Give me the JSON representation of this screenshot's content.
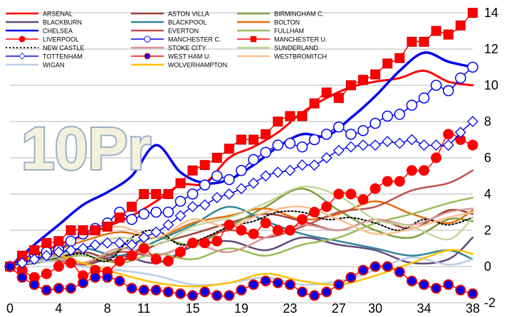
{
  "overlay_text": "10Pr",
  "chart_data": {
    "type": "line",
    "title": "",
    "xlabel": "",
    "ylabel": "",
    "xlim": [
      0,
      38
    ],
    "ylim": [
      -2,
      14
    ],
    "x_ticks": [
      0,
      4,
      8,
      11,
      15,
      19,
      23,
      27,
      30,
      34,
      38
    ],
    "y_ticks": [
      -2,
      0,
      2,
      4,
      6,
      8,
      10,
      12,
      14
    ],
    "grid": "horizontal",
    "legend_position": "top",
    "series": [
      {
        "name": "ARSENAL",
        "color": "#ff0000",
        "width": 3,
        "marker": "none",
        "x": [
          0,
          2,
          4,
          6,
          8,
          10,
          12,
          14,
          16,
          18,
          20,
          22,
          24,
          26,
          28,
          30,
          32,
          34,
          36,
          38
        ],
        "y": [
          0,
          0.6,
          1.2,
          1.7,
          2.2,
          2.8,
          3.6,
          4.5,
          4.6,
          6.0,
          6.6,
          7.4,
          8.5,
          9.3,
          9.9,
          10.2,
          10.4,
          10.8,
          10.2,
          10.0
        ]
      },
      {
        "name": "ASTON VILLA",
        "color": "#a0423a",
        "width": 2.5,
        "marker": "none",
        "x": [
          0,
          3,
          6,
          9,
          12,
          15,
          18,
          21,
          24,
          27,
          30,
          33,
          36,
          38
        ],
        "y": [
          0,
          0.3,
          0.8,
          0.3,
          1.2,
          1.8,
          2.4,
          2.9,
          2.5,
          2.0,
          2.6,
          2.1,
          3.1,
          2.9
        ]
      },
      {
        "name": "BIRMINGHAM C.",
        "color": "#7f9f3c",
        "width": 2.5,
        "marker": "none",
        "x": [
          0,
          3,
          6,
          9,
          12,
          15,
          18,
          21,
          24,
          27,
          30,
          33,
          36,
          38
        ],
        "y": [
          0,
          0.4,
          0.2,
          0.9,
          1.6,
          1.2,
          2.2,
          3.3,
          4.3,
          3.1,
          2.0,
          1.6,
          2.6,
          2.5
        ]
      },
      {
        "name": "BLACKBURN",
        "color": "#60497a",
        "width": 2.5,
        "marker": "none",
        "x": [
          0,
          3,
          6,
          9,
          12,
          15,
          18,
          21,
          24,
          27,
          30,
          33,
          36,
          38
        ],
        "y": [
          0,
          0.7,
          0.1,
          0.6,
          0.2,
          1.1,
          1.4,
          0.9,
          1.6,
          1.2,
          0.9,
          0.2,
          0.4,
          1.6
        ]
      },
      {
        "name": "BLACKPOOL",
        "color": "#31849b",
        "width": 2.5,
        "marker": "none",
        "x": [
          0,
          3,
          6,
          9,
          12,
          15,
          18,
          21,
          24,
          27,
          30,
          33,
          36,
          38
        ],
        "y": [
          0,
          0.5,
          1.0,
          0.6,
          1.4,
          2.3,
          3.3,
          2.5,
          1.8,
          1.4,
          1.0,
          0.6,
          0.9,
          0.4
        ]
      },
      {
        "name": "BOLTON",
        "color": "#e46c0a",
        "width": 2.5,
        "marker": "none",
        "x": [
          0,
          3,
          6,
          9,
          12,
          15,
          18,
          21,
          24,
          27,
          30,
          33,
          36,
          38
        ],
        "y": [
          0,
          0.7,
          1.4,
          1.9,
          1.6,
          2.4,
          2.8,
          3.2,
          2.6,
          2.9,
          3.6,
          2.9,
          2.4,
          3.1
        ]
      },
      {
        "name": "CHELSEA",
        "color": "#0000ee",
        "width": 3.5,
        "marker": "none",
        "x": [
          0,
          2,
          4,
          6,
          8,
          10,
          12,
          14,
          16,
          18,
          20,
          22,
          24,
          26,
          28,
          30,
          32,
          34,
          36,
          38
        ],
        "y": [
          0,
          1.2,
          2.3,
          3.4,
          4.1,
          5.0,
          6.7,
          5.2,
          4.6,
          4.8,
          5.6,
          6.6,
          7.3,
          7.2,
          8.2,
          9.4,
          10.8,
          11.8,
          11.3,
          11.0
        ]
      },
      {
        "name": "EVERTON",
        "color": "#c0504d",
        "width": 2.5,
        "marker": "none",
        "x": [
          0,
          3,
          6,
          9,
          12,
          15,
          18,
          21,
          24,
          27,
          30,
          33,
          36,
          38
        ],
        "y": [
          0,
          0.4,
          0.1,
          0.8,
          0.6,
          1.3,
          2.0,
          1.6,
          2.2,
          3.0,
          3.3,
          4.2,
          4.6,
          5.3
        ]
      },
      {
        "name": "FULLHAM",
        "color": "#9bbb59",
        "width": 2.5,
        "marker": "none",
        "x": [
          0,
          3,
          6,
          9,
          12,
          15,
          18,
          21,
          24,
          27,
          30,
          33,
          36,
          38
        ],
        "y": [
          0,
          0.3,
          0.6,
          0.2,
          0.7,
          0.4,
          1.0,
          0.6,
          1.2,
          1.6,
          2.4,
          2.9,
          3.5,
          3.8
        ]
      },
      {
        "name": "LIVERPOOL",
        "color": "#ff0000",
        "width": 1.5,
        "marker": "filled-circle",
        "x": [
          0,
          1,
          2,
          3,
          4,
          5,
          6,
          7,
          8,
          9,
          10,
          11,
          12,
          13,
          14,
          15,
          16,
          17,
          18,
          19,
          20,
          21,
          22,
          23,
          24,
          25,
          26,
          27,
          28,
          29,
          30,
          31,
          32,
          33,
          34,
          35,
          36,
          37,
          38
        ],
        "y": [
          0,
          -0.2,
          -0.6,
          -0.4,
          0.0,
          0.2,
          -0.5,
          -0.2,
          -0.3,
          0.3,
          0.6,
          1.0,
          0.4,
          0.3,
          0.8,
          1.3,
          1.3,
          1.4,
          2.3,
          2.0,
          1.8,
          2.4,
          2.0,
          2.0,
          2.6,
          3.0,
          3.3,
          4.0,
          4.0,
          3.7,
          4.3,
          4.7,
          4.7,
          5.3,
          5.3,
          6.0,
          7.3,
          7.0,
          6.7
        ]
      },
      {
        "name": "MANCHESTER C.",
        "color": "#0000ee",
        "width": 1.5,
        "marker": "open-circle",
        "x": [
          0,
          1,
          2,
          3,
          4,
          5,
          6,
          7,
          8,
          9,
          10,
          11,
          12,
          13,
          14,
          15,
          16,
          17,
          18,
          19,
          20,
          21,
          22,
          23,
          24,
          25,
          26,
          27,
          28,
          29,
          30,
          31,
          32,
          33,
          34,
          35,
          36,
          37,
          38
        ],
        "y": [
          0,
          0.4,
          0.7,
          0.8,
          0.9,
          1.4,
          1.8,
          2.1,
          2.4,
          3.0,
          2.6,
          2.9,
          3.0,
          3.0,
          3.6,
          4.0,
          4.5,
          5.0,
          4.8,
          5.3,
          5.9,
          6.3,
          6.7,
          6.8,
          6.6,
          7.0,
          7.3,
          7.7,
          7.3,
          7.5,
          7.9,
          8.3,
          8.4,
          8.9,
          9.3,
          10.0,
          9.7,
          10.4,
          11.0
        ]
      },
      {
        "name": "MANCHESTER U.",
        "color": "#ff0000",
        "width": 1.5,
        "marker": "filled-square",
        "x": [
          0,
          1,
          2,
          3,
          4,
          5,
          6,
          7,
          8,
          9,
          10,
          11,
          12,
          13,
          14,
          15,
          16,
          17,
          18,
          19,
          20,
          21,
          22,
          23,
          24,
          25,
          26,
          27,
          28,
          29,
          30,
          31,
          32,
          33,
          34,
          35,
          36,
          37,
          38
        ],
        "y": [
          0,
          0.6,
          0.9,
          1.3,
          1.4,
          2.0,
          2.0,
          2.0,
          2.2,
          2.7,
          3.3,
          4.0,
          4.0,
          4.0,
          4.6,
          5.3,
          5.6,
          6.0,
          6.5,
          7.0,
          7.0,
          7.3,
          8.0,
          8.3,
          8.3,
          9.0,
          9.6,
          9.3,
          10.0,
          10.3,
          10.6,
          11.2,
          11.5,
          12.4,
          12.4,
          13.0,
          12.8,
          13.3,
          14.0
        ]
      },
      {
        "name": "NEW CASTLE",
        "color": "#000000",
        "width": 2,
        "marker": "none",
        "dash": "2,3",
        "x": [
          0,
          2,
          4,
          6,
          8,
          10,
          12,
          14,
          16,
          18,
          20,
          22,
          24,
          26,
          28,
          30,
          32,
          34,
          36,
          38
        ],
        "y": [
          0,
          0.2,
          0.5,
          0.7,
          0.3,
          1.6,
          2.0,
          1.2,
          1.6,
          2.2,
          2.5,
          3.0,
          3.0,
          2.6,
          2.7,
          2.4,
          2.0,
          2.6,
          2.3,
          2.7
        ]
      },
      {
        "name": "STOKE CITY",
        "color": "#d99694",
        "width": 2.5,
        "marker": "none",
        "x": [
          0,
          3,
          6,
          9,
          12,
          15,
          18,
          21,
          24,
          27,
          30,
          33,
          36,
          38
        ],
        "y": [
          0,
          0.6,
          0.2,
          1.0,
          0.6,
          1.2,
          0.8,
          1.6,
          2.3,
          2.0,
          2.6,
          2.3,
          3.0,
          3.2
        ]
      },
      {
        "name": "SUNDERLAND",
        "color": "#c3d69b",
        "width": 2.5,
        "marker": "none",
        "x": [
          0,
          3,
          6,
          9,
          12,
          15,
          18,
          21,
          24,
          27,
          30,
          33,
          36,
          38
        ],
        "y": [
          0,
          0.4,
          1.0,
          1.6,
          1.2,
          2.2,
          2.7,
          3.5,
          4.4,
          3.9,
          2.6,
          2.2,
          1.5,
          2.7
        ]
      },
      {
        "name": "TOTTENHAM",
        "color": "#0000ee",
        "width": 1.5,
        "marker": "open-diamond",
        "x": [
          0,
          1,
          2,
          3,
          4,
          5,
          6,
          7,
          8,
          9,
          10,
          11,
          12,
          13,
          14,
          15,
          16,
          17,
          18,
          19,
          20,
          21,
          22,
          23,
          24,
          25,
          26,
          27,
          28,
          29,
          30,
          31,
          32,
          33,
          34,
          35,
          36,
          37,
          38
        ],
        "y": [
          0,
          0.2,
          0.4,
          0.6,
          0.8,
          0.9,
          1.0,
          1.2,
          1.3,
          1.3,
          1.2,
          1.6,
          1.9,
          2.3,
          2.8,
          3.3,
          3.4,
          3.8,
          4.0,
          4.3,
          4.6,
          5.0,
          5.2,
          5.3,
          5.6,
          5.6,
          6.0,
          6.4,
          6.6,
          6.7,
          6.7,
          6.9,
          6.8,
          7.0,
          6.7,
          6.7,
          6.7,
          7.4,
          8.0
        ]
      },
      {
        "name": "WEST HAM U.",
        "color": "#ff0000",
        "width": 1.5,
        "marker": "blue-circle",
        "x": [
          0,
          1,
          2,
          3,
          4,
          5,
          6,
          7,
          8,
          9,
          10,
          11,
          12,
          13,
          14,
          15,
          16,
          17,
          18,
          19,
          20,
          21,
          22,
          23,
          24,
          25,
          26,
          27,
          28,
          29,
          30,
          31,
          32,
          33,
          34,
          35,
          36,
          37,
          38
        ],
        "y": [
          0,
          -0.6,
          -1.0,
          -1.3,
          -1.2,
          -1.2,
          -0.9,
          -0.6,
          -0.6,
          -0.8,
          -1.2,
          -1.3,
          -1.3,
          -1.4,
          -1.5,
          -1.6,
          -1.4,
          -1.6,
          -1.6,
          -1.3,
          -1.0,
          -0.8,
          -0.9,
          -1.0,
          -1.4,
          -1.6,
          -1.4,
          -1.0,
          -0.6,
          -0.2,
          0.0,
          0.0,
          -0.3,
          -0.8,
          -1.0,
          -1.2,
          -1.0,
          -1.3,
          -1.5
        ]
      },
      {
        "name": "WESTBROMITCH",
        "color": "#fabf8f",
        "width": 2.5,
        "marker": "none",
        "x": [
          0,
          3,
          6,
          9,
          12,
          15,
          18,
          21,
          24,
          27,
          30,
          33,
          36,
          38
        ],
        "y": [
          0,
          0.8,
          1.6,
          2.2,
          1.6,
          2.6,
          2.2,
          3.0,
          3.3,
          2.6,
          1.8,
          2.1,
          2.7,
          3.0
        ]
      },
      {
        "name": "WIGAN",
        "color": "#b9cde5",
        "width": 2.5,
        "marker": "none",
        "x": [
          0,
          3,
          6,
          9,
          12,
          15,
          18,
          21,
          24,
          27,
          30,
          33,
          36,
          38
        ],
        "y": [
          0,
          0.3,
          0.0,
          -0.2,
          -0.5,
          -1.0,
          -0.9,
          -0.6,
          -1.0,
          -0.8,
          -0.2,
          0.5,
          0.1,
          0.4
        ]
      },
      {
        "name": "WOLVERHAMPTON",
        "color": "#ffc000",
        "width": 2.5,
        "marker": "none",
        "x": [
          0,
          3,
          6,
          9,
          12,
          15,
          18,
          21,
          24,
          27,
          30,
          33,
          36,
          38
        ],
        "y": [
          0,
          0.7,
          0.2,
          -0.4,
          -0.9,
          -1.1,
          -0.9,
          -0.4,
          -0.8,
          -1.0,
          -0.5,
          0.2,
          0.9,
          0.7
        ]
      }
    ]
  }
}
